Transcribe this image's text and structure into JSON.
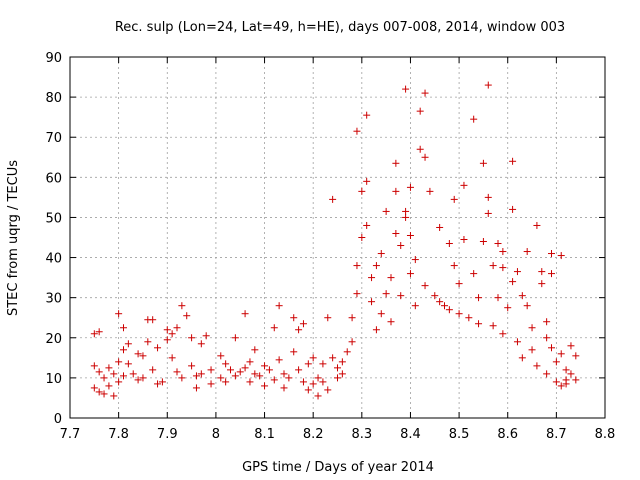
{
  "chart_data": {
    "type": "scatter",
    "title": "Rec. sulp (Lon=24, Lat=49, h=HE), days 007-008, 2014, window 003",
    "xlabel": "GPS time / Days of year 2014",
    "ylabel": "STEC from uqrg / TECUs",
    "xlim": [
      7.7,
      8.8
    ],
    "ylim": [
      0,
      90
    ],
    "xticks": [
      7.7,
      7.8,
      7.9,
      8.0,
      8.1,
      8.2,
      8.3,
      8.4,
      8.5,
      8.6,
      8.7,
      8.8
    ],
    "xtick_labels": [
      "7.7",
      "7.8",
      "7.9",
      "8",
      "8.1",
      "8.2",
      "8.3",
      "8.4",
      "8.5",
      "8.6",
      "8.7",
      "8.8"
    ],
    "yticks": [
      0,
      10,
      20,
      30,
      40,
      50,
      60,
      70,
      80,
      90
    ],
    "ytick_labels": [
      "0",
      "10",
      "20",
      "30",
      "40",
      "50",
      "60",
      "70",
      "80",
      "90"
    ],
    "grid": true,
    "marker": "+",
    "marker_color": "#cc0000",
    "series": [
      {
        "name": "STEC",
        "points": [
          [
            7.75,
            21.0
          ],
          [
            7.76,
            21.5
          ],
          [
            7.75,
            13.0
          ],
          [
            7.76,
            11.5
          ],
          [
            7.77,
            10.0
          ],
          [
            7.75,
            7.5
          ],
          [
            7.76,
            6.5
          ],
          [
            7.77,
            6.0
          ],
          [
            7.78,
            8.0
          ],
          [
            7.79,
            5.5
          ],
          [
            7.78,
            12.5
          ],
          [
            7.79,
            11.0
          ],
          [
            7.8,
            9.0
          ],
          [
            7.81,
            10.5
          ],
          [
            7.8,
            14.0
          ],
          [
            7.81,
            17.0
          ],
          [
            7.82,
            18.5
          ],
          [
            7.81,
            22.5
          ],
          [
            7.8,
            26.0
          ],
          [
            7.82,
            13.5
          ],
          [
            7.83,
            11.0
          ],
          [
            7.84,
            9.5
          ],
          [
            7.85,
            10.0
          ],
          [
            7.84,
            16.0
          ],
          [
            7.85,
            15.5
          ],
          [
            7.86,
            19.0
          ],
          [
            7.86,
            24.5
          ],
          [
            7.87,
            24.5
          ],
          [
            7.88,
            17.5
          ],
          [
            7.87,
            12.0
          ],
          [
            7.88,
            8.5
          ],
          [
            7.89,
            9.0
          ],
          [
            7.9,
            22.0
          ],
          [
            7.9,
            19.5
          ],
          [
            7.91,
            21.0
          ],
          [
            7.92,
            22.5
          ],
          [
            7.91,
            15.0
          ],
          [
            7.92,
            11.5
          ],
          [
            7.93,
            10.0
          ],
          [
            7.93,
            28.0
          ],
          [
            7.94,
            25.5
          ],
          [
            7.95,
            20.0
          ],
          [
            7.95,
            13.0
          ],
          [
            7.96,
            10.5
          ],
          [
            7.97,
            18.5
          ],
          [
            7.97,
            11.0
          ],
          [
            7.98,
            20.5
          ],
          [
            7.99,
            12.0
          ],
          [
            7.99,
            8.5
          ],
          [
            7.96,
            7.5
          ],
          [
            8.01,
            15.5
          ],
          [
            8.01,
            10.0
          ],
          [
            8.02,
            9.0
          ],
          [
            8.02,
            13.5
          ],
          [
            8.03,
            12.0
          ],
          [
            8.04,
            20.0
          ],
          [
            8.04,
            10.5
          ],
          [
            8.05,
            11.5
          ],
          [
            8.06,
            26.0
          ],
          [
            8.06,
            12.5
          ],
          [
            8.07,
            14.0
          ],
          [
            8.07,
            9.0
          ],
          [
            8.08,
            17.0
          ],
          [
            8.08,
            11.0
          ],
          [
            8.09,
            10.5
          ],
          [
            8.1,
            13.0
          ],
          [
            8.1,
            8.0
          ],
          [
            8.11,
            12.0
          ],
          [
            8.12,
            22.5
          ],
          [
            8.12,
            9.5
          ],
          [
            8.13,
            28.0
          ],
          [
            8.13,
            14.5
          ],
          [
            8.14,
            11.0
          ],
          [
            8.14,
            7.5
          ],
          [
            8.15,
            10.0
          ],
          [
            8.16,
            16.5
          ],
          [
            8.16,
            25.0
          ],
          [
            8.17,
            22.0
          ],
          [
            8.17,
            12.0
          ],
          [
            8.18,
            9.0
          ],
          [
            8.18,
            23.5
          ],
          [
            8.19,
            13.5
          ],
          [
            8.19,
            7.0
          ],
          [
            8.2,
            8.5
          ],
          [
            8.2,
            15.0
          ],
          [
            8.21,
            10.0
          ],
          [
            8.21,
            5.5
          ],
          [
            8.22,
            9.0
          ],
          [
            8.22,
            13.5
          ],
          [
            8.23,
            7.0
          ],
          [
            8.23,
            25.0
          ],
          [
            8.24,
            54.5
          ],
          [
            8.24,
            15.0
          ],
          [
            8.25,
            12.5
          ],
          [
            8.25,
            10.0
          ],
          [
            8.26,
            11.0
          ],
          [
            8.26,
            14.0
          ],
          [
            8.27,
            16.5
          ],
          [
            8.28,
            25.0
          ],
          [
            8.28,
            19.0
          ],
          [
            8.29,
            38.0
          ],
          [
            8.29,
            31.0
          ],
          [
            8.29,
            71.5
          ],
          [
            8.3,
            45.0
          ],
          [
            8.3,
            56.5
          ],
          [
            8.31,
            59.0
          ],
          [
            8.31,
            75.5
          ],
          [
            8.31,
            48.0
          ],
          [
            8.32,
            35.0
          ],
          [
            8.32,
            29.0
          ],
          [
            8.33,
            22.0
          ],
          [
            8.33,
            38.0
          ],
          [
            8.34,
            26.0
          ],
          [
            8.34,
            41.0
          ],
          [
            8.35,
            51.5
          ],
          [
            8.35,
            31.0
          ],
          [
            8.36,
            24.0
          ],
          [
            8.36,
            35.0
          ],
          [
            8.37,
            46.0
          ],
          [
            8.37,
            56.5
          ],
          [
            8.37,
            63.5
          ],
          [
            8.38,
            43.0
          ],
          [
            8.38,
            30.5
          ],
          [
            8.39,
            82.0
          ],
          [
            8.39,
            51.5
          ],
          [
            8.39,
            50.0
          ],
          [
            8.4,
            57.5
          ],
          [
            8.4,
            45.5
          ],
          [
            8.4,
            36.0
          ],
          [
            8.41,
            28.0
          ],
          [
            8.41,
            39.5
          ],
          [
            8.42,
            76.5
          ],
          [
            8.42,
            67.0
          ],
          [
            8.43,
            81.0
          ],
          [
            8.43,
            65.0
          ],
          [
            8.43,
            33.0
          ],
          [
            8.44,
            56.5
          ],
          [
            8.45,
            30.5
          ],
          [
            8.46,
            47.5
          ],
          [
            8.46,
            29.0
          ],
          [
            8.47,
            28.0
          ],
          [
            8.48,
            43.5
          ],
          [
            8.48,
            27.0
          ],
          [
            8.49,
            54.5
          ],
          [
            8.49,
            38.0
          ],
          [
            8.5,
            33.5
          ],
          [
            8.5,
            26.0
          ],
          [
            8.51,
            44.5
          ],
          [
            8.51,
            58.0
          ],
          [
            8.52,
            25.0
          ],
          [
            8.53,
            74.5
          ],
          [
            8.53,
            36.0
          ],
          [
            8.54,
            30.0
          ],
          [
            8.54,
            23.5
          ],
          [
            8.55,
            63.5
          ],
          [
            8.55,
            44.0
          ],
          [
            8.56,
            83.0
          ],
          [
            8.56,
            55.0
          ],
          [
            8.56,
            51.0
          ],
          [
            8.57,
            38.0
          ],
          [
            8.57,
            23.0
          ],
          [
            8.58,
            43.5
          ],
          [
            8.58,
            30.0
          ],
          [
            8.59,
            41.5
          ],
          [
            8.59,
            37.5
          ],
          [
            8.59,
            21.0
          ],
          [
            8.6,
            27.5
          ],
          [
            8.61,
            52.0
          ],
          [
            8.61,
            64.0
          ],
          [
            8.61,
            34.0
          ],
          [
            8.62,
            36.5
          ],
          [
            8.62,
            19.0
          ],
          [
            8.63,
            30.5
          ],
          [
            8.63,
            15.0
          ],
          [
            8.64,
            41.5
          ],
          [
            8.64,
            28.0
          ],
          [
            8.65,
            22.5
          ],
          [
            8.65,
            17.0
          ],
          [
            8.66,
            48.0
          ],
          [
            8.66,
            13.0
          ],
          [
            8.67,
            36.5
          ],
          [
            8.67,
            33.5
          ],
          [
            8.68,
            24.0
          ],
          [
            8.68,
            20.0
          ],
          [
            8.68,
            11.0
          ],
          [
            8.69,
            41.0
          ],
          [
            8.69,
            36.0
          ],
          [
            8.69,
            17.5
          ],
          [
            8.7,
            14.0
          ],
          [
            8.7,
            9.0
          ],
          [
            8.71,
            40.5
          ],
          [
            8.71,
            16.0
          ],
          [
            8.72,
            12.0
          ],
          [
            8.72,
            8.5
          ],
          [
            8.73,
            11.0
          ],
          [
            8.74,
            15.5
          ],
          [
            8.74,
            9.5
          ],
          [
            8.73,
            18.0
          ],
          [
            8.71,
            8.0
          ],
          [
            8.72,
            9.5
          ]
        ]
      }
    ]
  }
}
